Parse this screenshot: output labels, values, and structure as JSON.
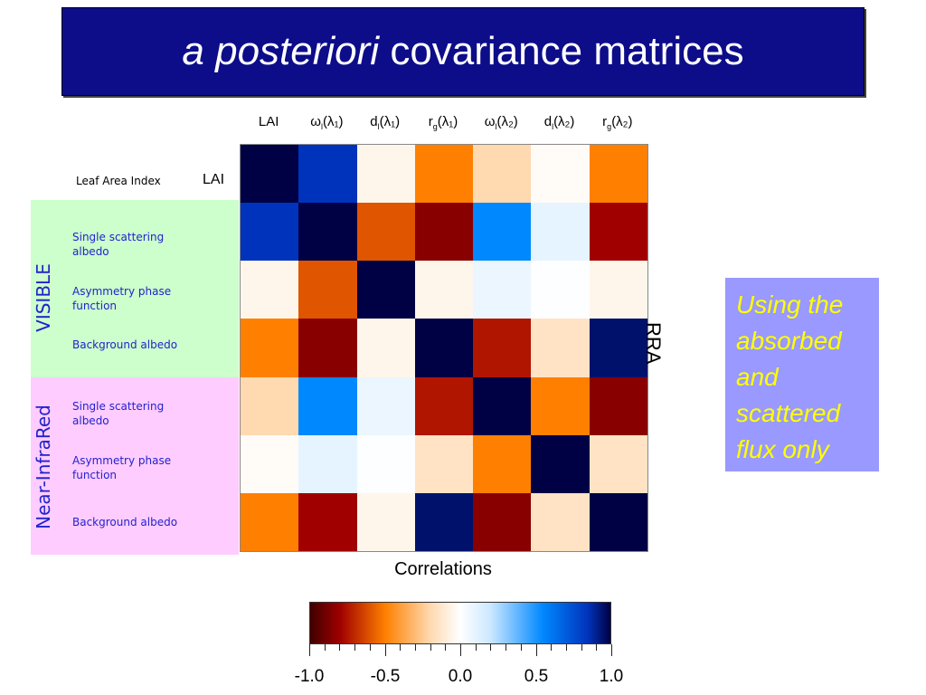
{
  "title": {
    "italic": "a posteriori",
    "rest": " covariance matrices"
  },
  "columns": [
    {
      "main": "LAI",
      "sub": "",
      "after": ""
    },
    {
      "main": "ω",
      "sub": "l",
      "after": "(λ₁)"
    },
    {
      "main": "d",
      "sub": "l",
      "after": "(λ₁)"
    },
    {
      "main": "r",
      "sub": "g",
      "after": "(λ₁)"
    },
    {
      "main": "ω",
      "sub": "l",
      "after": "(λ₂)"
    },
    {
      "main": "d",
      "sub": "l",
      "after": "(λ₂)"
    },
    {
      "main": "r",
      "sub": "g",
      "after": "(λ₂)"
    }
  ],
  "row_header": {
    "lai_long": "Leaf Area Index",
    "lai_short": "LAI"
  },
  "groups": {
    "visible": "VISIBLE",
    "nir": "Near-InfraRed"
  },
  "row_labels": {
    "vis_ssa": "Single scattering albedo",
    "vis_asym": "Asymmetry phase function",
    "vis_bg": "Background albedo",
    "nir_ssa": "Single scattering albedo",
    "nir_asym": "Asymmetry phase function",
    "nir_bg": "Background albedo"
  },
  "axis_right": "RRA",
  "side_note": "Using the absorbed and scattered flux only",
  "chart_data": {
    "type": "heatmap",
    "title": "Correlations",
    "rows": [
      "LAI",
      "ωl(λ1)",
      "dl(λ1)",
      "rg(λ1)",
      "ωl(λ2)",
      "dl(λ2)",
      "rg(λ2)"
    ],
    "columns": [
      "LAI",
      "ωl(λ1)",
      "dl(λ1)",
      "rg(λ1)",
      "ωl(λ2)",
      "dl(λ2)",
      "rg(λ2)"
    ],
    "values": [
      [
        1.0,
        0.85,
        -0.05,
        -0.5,
        -0.2,
        -0.02,
        -0.5
      ],
      [
        0.85,
        1.0,
        -0.6,
        -0.85,
        0.55,
        0.1,
        -0.8
      ],
      [
        -0.05,
        -0.6,
        1.0,
        -0.05,
        0.08,
        0.01,
        -0.05
      ],
      [
        -0.5,
        -0.85,
        -0.05,
        1.0,
        -0.75,
        -0.15,
        0.95
      ],
      [
        -0.2,
        0.55,
        0.08,
        -0.75,
        1.0,
        -0.5,
        -0.85
      ],
      [
        -0.02,
        0.1,
        0.01,
        -0.15,
        -0.5,
        1.0,
        -0.15
      ],
      [
        -0.5,
        -0.8,
        -0.05,
        0.95,
        -0.85,
        -0.15,
        1.0
      ]
    ],
    "colorbar": {
      "range": [
        -1.0,
        1.0
      ],
      "tick_labels": [
        "-1.0",
        "-0.5",
        "0.0",
        "0.5",
        "1.0"
      ],
      "tick_values": [
        -1.0,
        -0.5,
        0.0,
        0.5,
        1.0
      ]
    },
    "colors": {
      "neg_strong": "#400000",
      "neg_mid": "#a00000",
      "neg_orange": "#ff8000",
      "neg_light": "#ffd9b0",
      "zero": "#ffffff",
      "pos_light": "#cce8ff",
      "pos_mid": "#0088ff",
      "pos_strong": "#0033bb",
      "pos_max": "#000044"
    }
  }
}
